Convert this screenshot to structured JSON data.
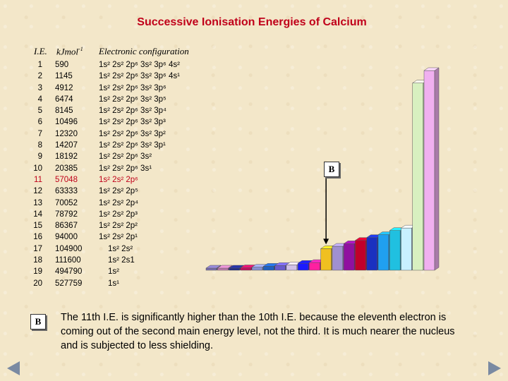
{
  "title": "Successive Ionisation Energies of Calcium",
  "headers": {
    "ie": "I.E.",
    "energy": "kJmol",
    "energy_sup": "-1",
    "config": "Electronic configuration"
  },
  "rows": [
    {
      "n": "1",
      "e": "590",
      "c": "1s² 2s² 2p⁶ 3s² 3p⁶ 4s²"
    },
    {
      "n": "2",
      "e": "1145",
      "c": "1s² 2s² 2p⁶ 3s² 3p⁶ 4s¹"
    },
    {
      "n": "3",
      "e": "4912",
      "c": "1s² 2s² 2p⁶ 3s² 3p⁶"
    },
    {
      "n": "4",
      "e": "6474",
      "c": "1s² 2s² 2p⁶ 3s² 3p⁵"
    },
    {
      "n": "5",
      "e": "8145",
      "c": "1s² 2s² 2p⁶ 3s² 3p⁴"
    },
    {
      "n": "6",
      "e": "10496",
      "c": "1s² 2s² 2p⁶ 3s² 3p³"
    },
    {
      "n": "7",
      "e": "12320",
      "c": "1s² 2s² 2p⁶ 3s² 3p²"
    },
    {
      "n": "8",
      "e": "14207",
      "c": "1s² 2s² 2p⁶ 3s² 3p¹"
    },
    {
      "n": "9",
      "e": "18192",
      "c": "1s² 2s² 2p⁶ 3s²"
    },
    {
      "n": "10",
      "e": "20385",
      "c": "1s² 2s² 2p⁶ 3s¹"
    },
    {
      "n": "11",
      "e": "57048",
      "c": "1s² 2s² 2p⁶"
    },
    {
      "n": "12",
      "e": "63333",
      "c": "1s² 2s² 2p⁵"
    },
    {
      "n": "13",
      "e": "70052",
      "c": "1s² 2s² 2p⁴"
    },
    {
      "n": "14",
      "e": "78792",
      "c": "1s² 2s² 2p³"
    },
    {
      "n": "15",
      "e": "86367",
      "c": "1s² 2s² 2p²"
    },
    {
      "n": "16",
      "e": "94000",
      "c": "1s² 2s² 2p¹"
    },
    {
      "n": "17",
      "e": "104900",
      "c": "1s² 2s²"
    },
    {
      "n": "18",
      "e": "111600",
      "c": "1s² 2s1"
    },
    {
      "n": "19",
      "e": "494790",
      "c": "1s²"
    },
    {
      "n": "20",
      "e": "527759",
      "c": "1s¹"
    }
  ],
  "highlight_row": 11,
  "marker_label": "B",
  "explanation": "The 11th I.E. is significantly higher than the 10th I.E. because the eleventh electron is coming out of the second main energy level, not the third.  It is much nearer the nucleus and is subjected to less shielding.",
  "colors": {
    "title": "#c0001a",
    "highlight": "#c0001a",
    "nav": "#7a8aa2"
  },
  "chart_data": {
    "type": "bar",
    "x": [
      1,
      2,
      3,
      4,
      5,
      6,
      7,
      8,
      9,
      10,
      11,
      12,
      13,
      14,
      15,
      16,
      17,
      18,
      19,
      20
    ],
    "values": [
      590,
      1145,
      4912,
      6474,
      8145,
      10496,
      12320,
      14207,
      18192,
      20385,
      57048,
      63333,
      70052,
      78792,
      86367,
      94000,
      104900,
      111600,
      494790,
      527759
    ],
    "title": "",
    "xlabel": "",
    "ylabel": "",
    "annotation": {
      "label": "B",
      "target_x": 11
    },
    "bar_colors": [
      "#7a6fb0",
      "#c07ab0",
      "#1f2a8a",
      "#c01060",
      "#8890d0",
      "#2060c0",
      "#6a5acd",
      "#d0c0e8",
      "#1a1aff",
      "#ff20a0",
      "#f0c020",
      "#a090d0",
      "#9010a0",
      "#c0002a",
      "#1a30c0",
      "#20a0f0",
      "#20c0e0",
      "#c8f0ff",
      "#d8f0c0",
      "#f0b0f0"
    ]
  }
}
